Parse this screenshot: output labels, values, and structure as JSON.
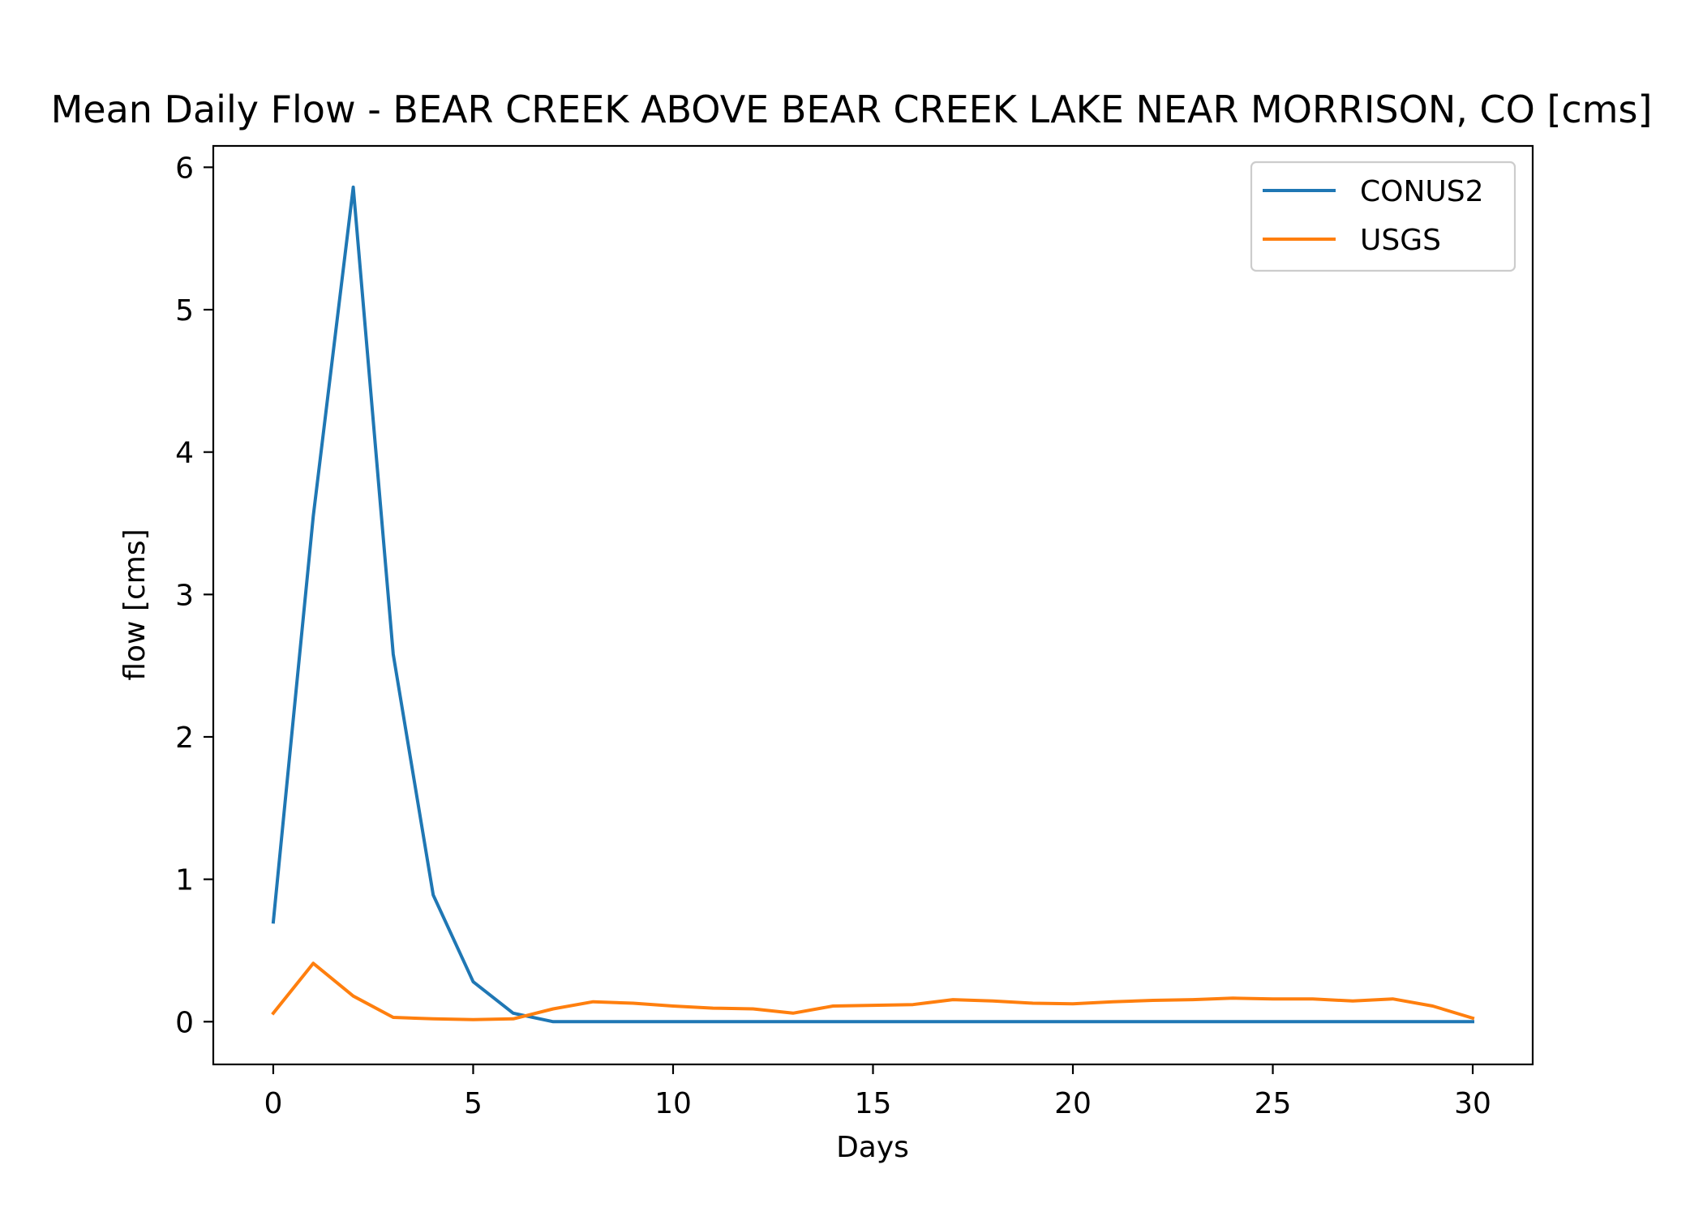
{
  "chart_data": {
    "type": "line",
    "title": "Mean Daily Flow - BEAR CREEK ABOVE BEAR CREEK LAKE NEAR MORRISON, CO [cms]",
    "xlabel": "Days",
    "ylabel": "flow [cms]",
    "xlim": [
      -1.5,
      31.5
    ],
    "ylim": [
      -0.3,
      6.15
    ],
    "x_ticks": [
      0,
      5,
      10,
      15,
      20,
      25,
      30
    ],
    "y_ticks": [
      0,
      1,
      2,
      3,
      4,
      5,
      6
    ],
    "grid": false,
    "legend_position": "top-right",
    "x": [
      0,
      1,
      2,
      3,
      4,
      5,
      6,
      7,
      8,
      9,
      10,
      11,
      12,
      13,
      14,
      15,
      16,
      17,
      18,
      19,
      20,
      21,
      22,
      23,
      24,
      25,
      26,
      27,
      28,
      29,
      30
    ],
    "series": [
      {
        "name": "CONUS2",
        "color": "#1f77b4",
        "values": [
          0.7,
          3.55,
          5.86,
          2.58,
          0.89,
          0.28,
          0.06,
          0.0,
          0.0,
          0.0,
          0.0,
          0.0,
          0.0,
          0.0,
          0.0,
          0.0,
          0.0,
          0.0,
          0.0,
          0.0,
          0.0,
          0.0,
          0.0,
          0.0,
          0.0,
          0.0,
          0.0,
          0.0,
          0.0,
          0.0,
          0.0
        ]
      },
      {
        "name": "USGS",
        "color": "#ff7f0e",
        "values": [
          0.06,
          0.41,
          0.18,
          0.03,
          0.02,
          0.015,
          0.02,
          0.09,
          0.14,
          0.13,
          0.11,
          0.095,
          0.09,
          0.06,
          0.11,
          0.115,
          0.12,
          0.155,
          0.145,
          0.13,
          0.125,
          0.14,
          0.15,
          0.155,
          0.165,
          0.16,
          0.16,
          0.145,
          0.16,
          0.11,
          0.025
        ]
      }
    ]
  }
}
